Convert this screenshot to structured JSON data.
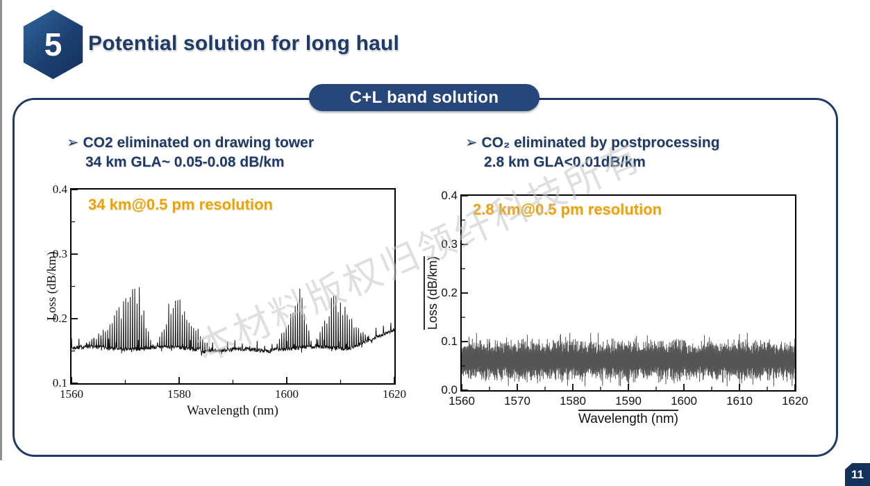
{
  "slide": {
    "badge_number": "5",
    "title": "Potential solution for long haul",
    "page_number": "11"
  },
  "banner": {
    "label": "C+L band solution"
  },
  "bullets": {
    "left": {
      "marker": "➢",
      "line1": "CO2 eliminated on drawing tower",
      "line2": "34 km GLA~ 0.05-0.08 dB/km"
    },
    "right": {
      "marker": "➢",
      "line1": "CO₂ eliminated by postprocessing",
      "line2": "2.8 km GLA<0.01dB/km"
    }
  },
  "watermark": {
    "text": "本材料版权归领纤科技所有"
  },
  "colors": {
    "navy": "#1e3a66",
    "pill_navy": "#27477a",
    "badge_navy_light": "#2f6aa0",
    "badge_navy_dark": "#132f58",
    "orange": "#f0a202",
    "chart1_line": "#111111",
    "chart2_line": "#555555",
    "watermark_gray": "#c6c6c6"
  },
  "chart_data": [
    {
      "type": "line",
      "title": "34 km@0.5 pm resolution",
      "xlabel": "Wavelength (nm)",
      "ylabel": "Loss (dB/km)",
      "xlim": [
        1560,
        1620
      ],
      "ylim": [
        0.1,
        0.4
      ],
      "xticks": [
        "1560",
        "1580",
        "1600",
        "1620"
      ],
      "xticks_minor": [
        1570,
        1590,
        1610
      ],
      "yticks": [
        "0.1",
        "0.2",
        "0.3",
        "0.4"
      ],
      "yticks_minor": [
        0.15,
        0.25,
        0.35
      ],
      "baseline_dBkm": 0.155,
      "baseline_end_dBkm": 0.18,
      "spike_clusters": [
        {
          "start": 1562.0,
          "peak": 1572.3,
          "end": 1575.5,
          "peak_loss_dBkm": 0.248
        },
        {
          "start": 1575.5,
          "peak": 1578.8,
          "end": 1587.0,
          "peak_loss_dBkm": 0.235
        },
        {
          "start": 1597.5,
          "peak": 1602.3,
          "end": 1605.0,
          "peak_loss_dBkm": 0.245
        },
        {
          "start": 1605.0,
          "peak": 1608.8,
          "end": 1616.0,
          "peak_loss_dBkm": 0.24
        }
      ],
      "description": "Flat baseline ~0.155 dB/km with four comb-like OH absorption spike clusters around 1572, 1579, 1602 and 1609 nm; baseline rises to ~0.18 dB/km near 1620 nm",
      "grid": false,
      "legend": null
    },
    {
      "type": "line",
      "title": "2.8 km@0.5 pm resolution",
      "xlabel": "Wavelength (nm)",
      "ylabel": "Loss (dB/km)",
      "xlim": [
        1560,
        1620
      ],
      "ylim": [
        0.0,
        0.4
      ],
      "xticks": [
        "1560",
        "1570",
        "1580",
        "1590",
        "1600",
        "1610",
        "1620"
      ],
      "xticks_minor": [
        1565,
        1575,
        1585,
        1595,
        1605,
        1615
      ],
      "yticks": [
        "0.0",
        "0.1",
        "0.2",
        "0.3",
        "0.4"
      ],
      "yticks_minor": [
        0.05,
        0.15,
        0.25,
        0.35
      ],
      "noise_mean_dBkm": 0.062,
      "noise_min_dBkm": 0.01,
      "noise_max_dBkm": 0.115,
      "description": "Dense flat noise band centered ~0.06 dB/km spanning ~0.01–0.12 dB/km across 1560–1620 nm; no absorption peaks",
      "grid": false,
      "legend": null
    }
  ]
}
